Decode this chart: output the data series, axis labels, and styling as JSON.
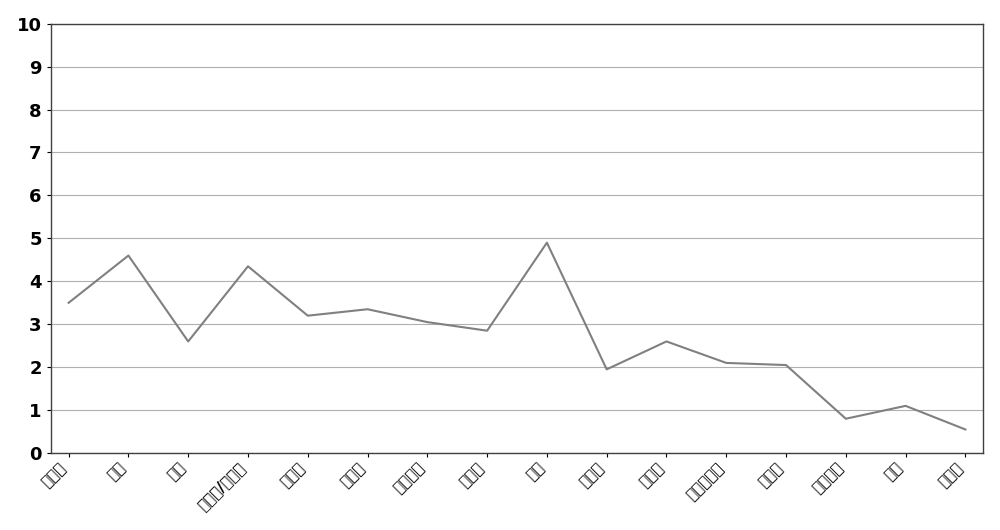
{
  "categories": [
    "合成味",
    "蜡味",
    "油味",
    "塑料味/橡胶味",
    "烘烤味",
    "白垩味",
    "化学品味",
    "金属味",
    "灰味",
    "油炸味",
    "淀粉味",
    "烧焦的油味",
    "机油味",
    "提亚薯味",
    "乳味",
    "腐臭味"
  ],
  "values": [
    3.5,
    4.6,
    2.6,
    4.35,
    3.2,
    3.35,
    3.05,
    2.85,
    4.9,
    1.95,
    2.6,
    2.1,
    2.05,
    0.8,
    1.1,
    0.55
  ],
  "line_color": "#808080",
  "background_color": "#ffffff",
  "grid_color": "#b0b0b0",
  "ylim": [
    0,
    10
  ],
  "yticks": [
    0,
    1,
    2,
    3,
    4,
    5,
    6,
    7,
    8,
    9,
    10
  ],
  "figsize": [
    10.0,
    5.3
  ],
  "dpi": 100
}
